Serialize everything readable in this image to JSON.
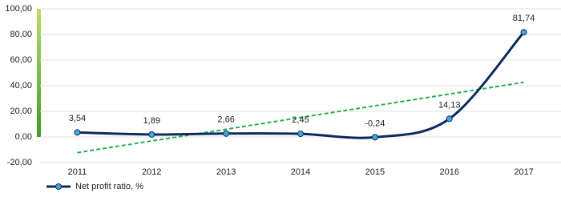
{
  "chart_data": {
    "type": "line",
    "categories": [
      "2011",
      "2012",
      "2013",
      "2014",
      "2015",
      "2016",
      "2017"
    ],
    "series": [
      {
        "name": "Net profit ratio, %",
        "color": "#0d2a5c",
        "marker_color": "#3fa9e0",
        "values": [
          3.54,
          1.89,
          2.66,
          2.45,
          -0.24,
          14.13,
          81.74
        ],
        "value_labels": [
          "3,54",
          "1,89",
          "2,66",
          "2,45",
          "-0,24",
          "14,13",
          "81,74"
        ]
      }
    ],
    "ylim": [
      -20,
      100
    ],
    "yticks": [
      {
        "value": -20,
        "label": "-20,00"
      },
      {
        "value": 0,
        "label": "0,00"
      },
      {
        "value": 20,
        "label": "20,00"
      },
      {
        "value": 40,
        "label": "40,00"
      },
      {
        "value": 60,
        "label": "60,00"
      },
      {
        "value": 80,
        "label": "80,00"
      },
      {
        "value": 100,
        "label": "100,00"
      }
    ],
    "grid": true,
    "smooth": true,
    "trendline": true,
    "trendline_color": "#27ae4f",
    "legend": "bottom-left"
  }
}
